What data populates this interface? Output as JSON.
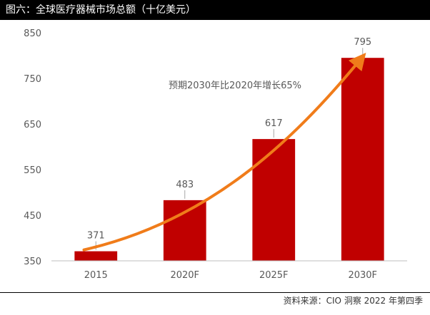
{
  "figure": {
    "title": "图六：全球医疗器械市场总额（十亿美元）",
    "source": "资料来源：CIO 洞察 2022 年第四季"
  },
  "chart_data": {
    "type": "bar",
    "title": "图六：全球医疗器械市场总额（十亿美元）",
    "categories": [
      "2015",
      "2020F",
      "2025F",
      "2030F"
    ],
    "values": [
      371,
      483,
      617,
      795
    ],
    "data_labels": [
      "371",
      "483",
      "617",
      "795"
    ],
    "ylim": [
      350,
      850
    ],
    "yticks": [
      350,
      450,
      550,
      650,
      750,
      850
    ],
    "ytick_labels": [
      "350",
      "450",
      "550",
      "650",
      "750",
      "850"
    ],
    "xlabel": "",
    "ylabel": "",
    "grid": false,
    "legend": "none",
    "annotation": "预期2030年比2020年增长65%",
    "trend_arrow": {
      "from_category": "2015",
      "to_category": "2030F",
      "color": "#f07c1a"
    },
    "bar_color": "#c00000"
  }
}
